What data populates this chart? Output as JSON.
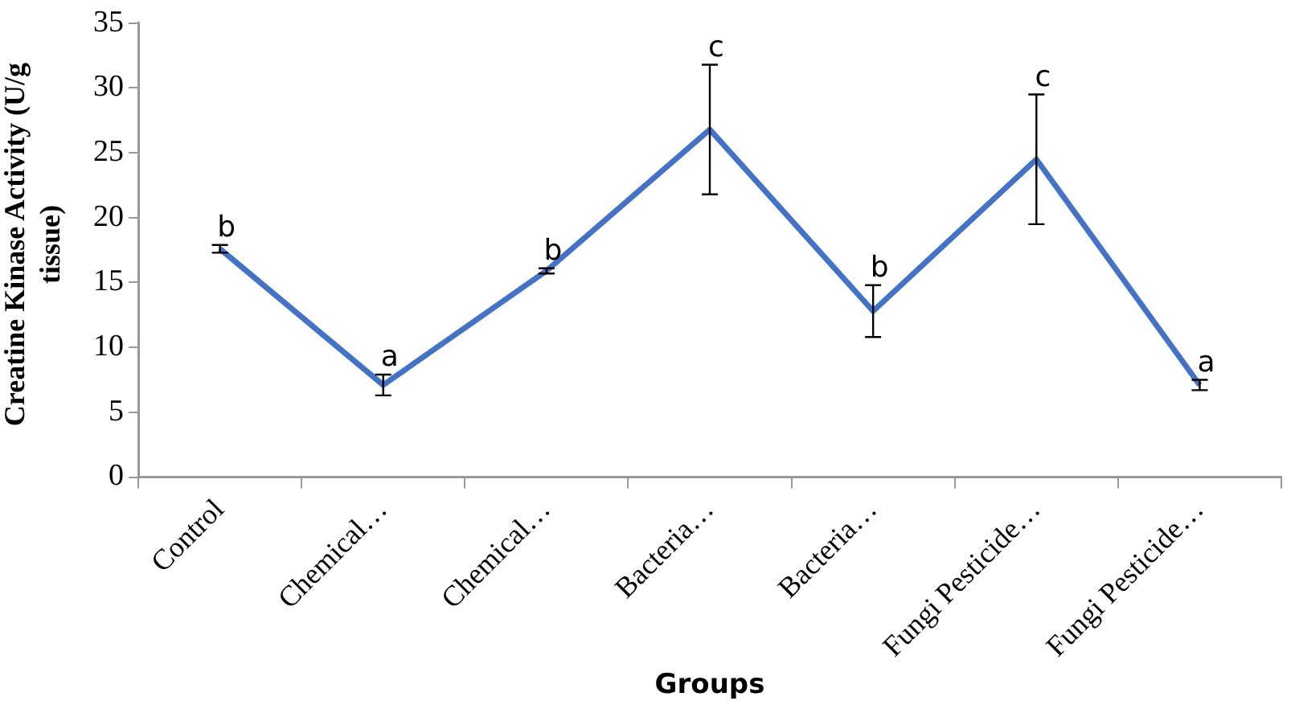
{
  "chart_data": {
    "type": "line",
    "xlabel": "Groups",
    "ylabel": "Creatine Kinase Activity (U/g tissue)",
    "categories": [
      "Control",
      "Chemical…",
      "Chemical…",
      "Bacteria…",
      "Bacteria…",
      "Fungi Pesticide…",
      "Fungi Pesticide…"
    ],
    "series": [
      {
        "color": "#4472c4",
        "values": [
          17.6,
          7.1,
          15.9,
          26.8,
          12.8,
          24.5,
          7.1
        ],
        "errors": [
          0.3,
          0.8,
          0.2,
          5,
          2,
          5,
          0.4
        ],
        "value_labels": [
          "b",
          "a",
          "b",
          "c",
          "b",
          "c",
          "a"
        ]
      }
    ],
    "ylim": [
      0,
      35
    ],
    "yticks": [
      0,
      5,
      10,
      15,
      20,
      25,
      30,
      35
    ],
    "grid": false,
    "legend": false,
    "marker": "none",
    "line_style": "solid"
  }
}
